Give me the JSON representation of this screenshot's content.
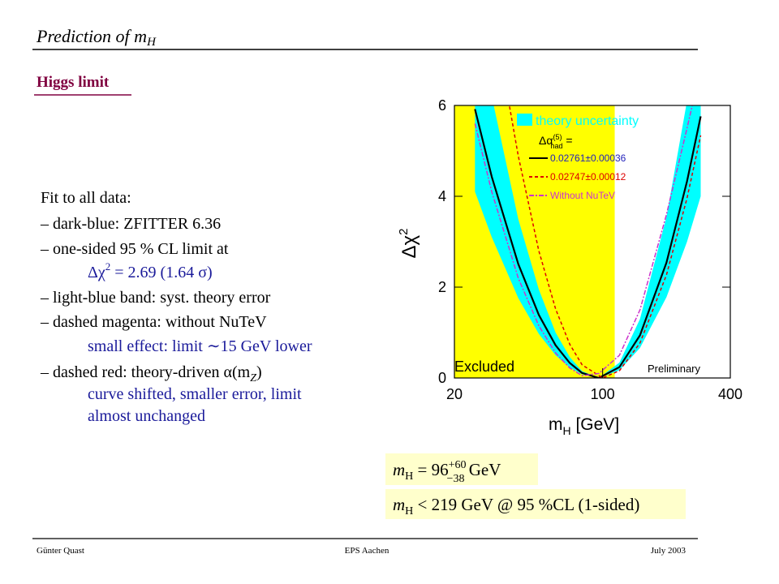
{
  "header": {
    "title": "Prediction of m",
    "title_sub": "H"
  },
  "section": "Higgs limit",
  "bullets": [
    "Fit to all data:",
    "– dark-blue: ZFITTER 6.36",
    "– one-sided 95 % CL limit at",
    {
      "parts": [
        "Δχ",
        "2",
        " = 2.69 (1.64 σ)"
      ]
    },
    "– light-blue band: syst. theory error",
    "– dashed magenta: without NuTeV",
    "small effect: limit ∼15 GeV lower",
    {
      "parts": [
        "– dashed red: theory-driven α(m",
        "Z",
        ")"
      ]
    },
    "curve shifted, smaller error, limit",
    "almost unchanged"
  ],
  "plot": {
    "xlog": true,
    "xlim": [
      20,
      400
    ],
    "xticks": [
      20,
      100,
      400
    ],
    "ylim": [
      0,
      6
    ],
    "yticks": [
      0,
      2,
      4,
      6
    ],
    "x_label": [
      "m",
      "H",
      " [GeV]"
    ],
    "y_label": [
      "Δχ",
      "2"
    ],
    "excluded": {
      "range": [
        20,
        114
      ],
      "label": "Excluded",
      "color": "#ffff00"
    },
    "preliminary": "Preliminary",
    "legend_header": [
      "Δα",
      "(5)",
      "had",
      " ="
    ],
    "band": {
      "name": "theory uncertainty",
      "color": "#00ffff",
      "x": [
        25,
        30,
        40,
        50,
        60,
        70,
        80,
        96,
        120,
        150,
        200,
        250,
        290
      ],
      "high": [
        8.3,
        6.2,
        3.5,
        1.95,
        1.0,
        0.46,
        0.15,
        0,
        0.34,
        1.3,
        3.55,
        6.1,
        8.1
      ],
      "low": [
        4.1,
        3.1,
        1.76,
        0.97,
        0.5,
        0.23,
        0.08,
        0,
        0.17,
        0.66,
        1.78,
        3.0,
        4.0
      ]
    },
    "series": [
      {
        "name": "0.02761±0.00036",
        "color": "#000000",
        "dash": "none",
        "x": [
          25,
          30,
          40,
          50,
          60,
          70,
          80,
          96,
          120,
          150,
          200,
          250,
          290
        ],
        "values": [
          5.92,
          4.43,
          2.51,
          1.39,
          0.72,
          0.33,
          0.11,
          0,
          0.24,
          0.94,
          2.54,
          4.33,
          5.76
        ]
      },
      {
        "name": "0.02747±0.00012",
        "color": "#dd0000",
        "dash": "4 3",
        "x": [
          36,
          40,
          50,
          60,
          70,
          80,
          100,
          120,
          150,
          200,
          250,
          290
        ],
        "values": [
          6.1,
          4.89,
          2.8,
          1.52,
          0.74,
          0.29,
          0,
          0.16,
          0.77,
          2.27,
          3.96,
          5.34
        ]
      },
      {
        "name": "Without NuTeV",
        "color": "#cc33cc",
        "dash": "6 2 2 2",
        "x": [
          25,
          30,
          40,
          50,
          60,
          70,
          80,
          96,
          120,
          150,
          200,
          250,
          290
        ],
        "values": [
          5.6,
          4.1,
          2.2,
          1.15,
          0.55,
          0.22,
          0.05,
          0.1,
          0.5,
          1.5,
          3.6,
          5.5,
          6.8
        ]
      }
    ]
  },
  "results": [
    {
      "parts": [
        "m",
        "H",
        " = 96",
        "+60",
        "−38",
        " GeV"
      ]
    },
    {
      "parts": [
        "m",
        "H",
        " < 219 GeV @ 95 %CL (1-sided)"
      ]
    }
  ],
  "footer": {
    "left": "Günter Quast",
    "center": "EPS Aachen",
    "right": "July 2003"
  }
}
